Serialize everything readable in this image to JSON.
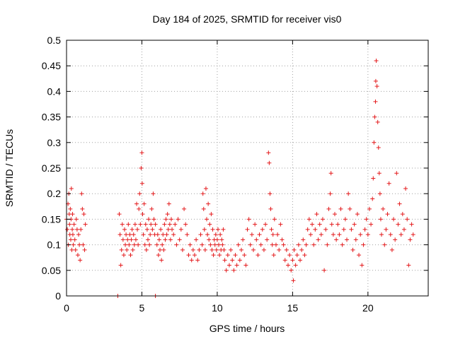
{
  "chart_data": {
    "type": "scatter",
    "title": "Day 184 of 2025, SRMTID for receiver vis0",
    "xlabel": "GPS time / hours",
    "ylabel": "SRMTID / TECUs",
    "xlim": [
      0,
      24
    ],
    "ylim": [
      0,
      0.5
    ],
    "x_ticks": [
      0,
      5,
      10,
      15,
      20
    ],
    "x_tick_labels": [
      "0",
      "5",
      "10",
      "15",
      "20"
    ],
    "y_ticks": [
      0,
      0.05,
      0.1,
      0.15,
      0.2,
      0.25,
      0.3,
      0.35,
      0.4,
      0.45,
      0.5
    ],
    "y_tick_labels": [
      "0",
      "0.05",
      "0.1",
      "0.15",
      "0.2",
      "0.25",
      "0.3",
      "0.35",
      "0.4",
      "0.45",
      "0.5"
    ],
    "grid": true,
    "marker": "+",
    "color": "#e41a1c",
    "series": [
      {
        "name": "vis0",
        "points": [
          [
            0.0,
            0.15
          ],
          [
            0.05,
            0.13
          ],
          [
            0.1,
            0.18
          ],
          [
            0.12,
            0.1
          ],
          [
            0.15,
            0.2
          ],
          [
            0.18,
            0.16
          ],
          [
            0.2,
            0.14
          ],
          [
            0.22,
            0.12
          ],
          [
            0.25,
            0.17
          ],
          [
            0.28,
            0.11
          ],
          [
            0.3,
            0.15
          ],
          [
            0.32,
            0.21
          ],
          [
            0.35,
            0.09
          ],
          [
            0.38,
            0.13
          ],
          [
            0.4,
            0.16
          ],
          [
            0.42,
            0.12
          ],
          [
            0.45,
            0.1
          ],
          [
            0.5,
            0.14
          ],
          [
            0.55,
            0.11
          ],
          [
            0.6,
            0.09
          ],
          [
            0.65,
            0.15
          ],
          [
            0.7,
            0.13
          ],
          [
            0.75,
            0.08
          ],
          [
            0.8,
            0.12
          ],
          [
            0.85,
            0.1
          ],
          [
            0.9,
            0.07
          ],
          [
            0.95,
            0.13
          ],
          [
            1.0,
            0.2
          ],
          [
            1.05,
            0.17
          ],
          [
            1.1,
            0.1
          ],
          [
            1.15,
            0.16
          ],
          [
            1.2,
            0.09
          ],
          [
            1.25,
            0.14
          ],
          [
            3.4,
            0.0
          ],
          [
            5.9,
            0.0
          ],
          [
            3.5,
            0.16
          ],
          [
            3.55,
            0.12
          ],
          [
            3.6,
            0.06
          ],
          [
            3.65,
            0.09
          ],
          [
            3.7,
            0.14
          ],
          [
            3.75,
            0.11
          ],
          [
            3.8,
            0.08
          ],
          [
            3.85,
            0.13
          ],
          [
            3.9,
            0.1
          ],
          [
            3.95,
            0.12
          ],
          [
            4.0,
            0.09
          ],
          [
            4.05,
            0.11
          ],
          [
            4.1,
            0.14
          ],
          [
            4.15,
            0.1
          ],
          [
            4.2,
            0.12
          ],
          [
            4.25,
            0.08
          ],
          [
            4.3,
            0.11
          ],
          [
            4.35,
            0.13
          ],
          [
            4.4,
            0.09
          ],
          [
            4.45,
            0.12
          ],
          [
            4.5,
            0.1
          ],
          [
            4.55,
            0.14
          ],
          [
            4.6,
            0.11
          ],
          [
            4.65,
            0.18
          ],
          [
            4.7,
            0.13
          ],
          [
            4.75,
            0.1
          ],
          [
            4.8,
            0.17
          ],
          [
            4.85,
            0.2
          ],
          [
            4.9,
            0.14
          ],
          [
            4.95,
            0.25
          ],
          [
            5.0,
            0.28
          ],
          [
            5.02,
            0.22
          ],
          [
            5.05,
            0.16
          ],
          [
            5.1,
            0.12
          ],
          [
            5.15,
            0.18
          ],
          [
            5.2,
            0.1
          ],
          [
            5.25,
            0.14
          ],
          [
            5.3,
            0.09
          ],
          [
            5.35,
            0.13
          ],
          [
            5.4,
            0.11
          ],
          [
            5.45,
            0.15
          ],
          [
            5.5,
            0.1
          ],
          [
            5.55,
            0.12
          ],
          [
            5.6,
            0.14
          ],
          [
            5.65,
            0.17
          ],
          [
            5.7,
            0.13
          ],
          [
            5.75,
            0.2
          ],
          [
            5.8,
            0.15
          ],
          [
            5.85,
            0.12
          ],
          [
            5.9,
            0.14
          ],
          [
            6.0,
            0.1
          ],
          [
            6.05,
            0.12
          ],
          [
            6.1,
            0.08
          ],
          [
            6.15,
            0.11
          ],
          [
            6.2,
            0.09
          ],
          [
            6.25,
            0.13
          ],
          [
            6.3,
            0.07
          ],
          [
            6.35,
            0.1
          ],
          [
            6.4,
            0.12
          ],
          [
            6.45,
            0.09
          ],
          [
            6.5,
            0.14
          ],
          [
            6.55,
            0.11
          ],
          [
            6.6,
            0.15
          ],
          [
            6.65,
            0.12
          ],
          [
            6.7,
            0.16
          ],
          [
            6.75,
            0.13
          ],
          [
            6.8,
            0.18
          ],
          [
            6.85,
            0.14
          ],
          [
            6.9,
            0.11
          ],
          [
            6.95,
            0.15
          ],
          [
            7.0,
            0.13
          ],
          [
            7.1,
            0.12
          ],
          [
            7.2,
            0.14
          ],
          [
            7.3,
            0.1
          ],
          [
            7.4,
            0.15
          ],
          [
            7.5,
            0.11
          ],
          [
            7.6,
            0.13
          ],
          [
            7.7,
            0.09
          ],
          [
            7.8,
            0.17
          ],
          [
            7.9,
            0.14
          ],
          [
            8.0,
            0.12
          ],
          [
            8.1,
            0.08
          ],
          [
            8.2,
            0.1
          ],
          [
            8.3,
            0.07
          ],
          [
            8.4,
            0.09
          ],
          [
            8.5,
            0.08
          ],
          [
            8.6,
            0.11
          ],
          [
            8.7,
            0.07
          ],
          [
            8.8,
            0.09
          ],
          [
            8.9,
            0.12
          ],
          [
            9.0,
            0.1
          ],
          [
            9.05,
            0.2
          ],
          [
            9.1,
            0.17
          ],
          [
            9.15,
            0.13
          ],
          [
            9.2,
            0.09
          ],
          [
            9.25,
            0.21
          ],
          [
            9.3,
            0.15
          ],
          [
            9.35,
            0.12
          ],
          [
            9.4,
            0.18
          ],
          [
            9.45,
            0.11
          ],
          [
            9.5,
            0.14
          ],
          [
            9.55,
            0.1
          ],
          [
            9.6,
            0.16
          ],
          [
            9.65,
            0.09
          ],
          [
            9.7,
            0.13
          ],
          [
            9.75,
            0.08
          ],
          [
            9.8,
            0.11
          ],
          [
            9.85,
            0.1
          ],
          [
            9.9,
            0.12
          ],
          [
            9.95,
            0.09
          ],
          [
            10.0,
            0.11
          ],
          [
            10.05,
            0.13
          ],
          [
            10.1,
            0.1
          ],
          [
            10.15,
            0.08
          ],
          [
            10.2,
            0.12
          ],
          [
            10.25,
            0.09
          ],
          [
            10.3,
            0.11
          ],
          [
            10.35,
            0.1
          ],
          [
            10.4,
            0.13
          ],
          [
            10.45,
            0.09
          ],
          [
            10.5,
            0.07
          ],
          [
            10.6,
            0.05
          ],
          [
            10.7,
            0.08
          ],
          [
            10.8,
            0.06
          ],
          [
            10.9,
            0.09
          ],
          [
            11.0,
            0.07
          ],
          [
            11.1,
            0.05
          ],
          [
            11.2,
            0.08
          ],
          [
            11.3,
            0.06
          ],
          [
            11.4,
            0.1
          ],
          [
            11.5,
            0.07
          ],
          [
            11.6,
            0.09
          ],
          [
            11.7,
            0.11
          ],
          [
            11.8,
            0.08
          ],
          [
            11.9,
            0.06
          ],
          [
            12.0,
            0.13
          ],
          [
            12.1,
            0.15
          ],
          [
            12.2,
            0.1
          ],
          [
            12.3,
            0.12
          ],
          [
            12.4,
            0.09
          ],
          [
            12.5,
            0.14
          ],
          [
            12.6,
            0.11
          ],
          [
            12.7,
            0.08
          ],
          [
            12.8,
            0.12
          ],
          [
            12.9,
            0.1
          ],
          [
            13.0,
            0.13
          ],
          [
            13.1,
            0.09
          ],
          [
            13.2,
            0.14
          ],
          [
            13.3,
            0.11
          ],
          [
            13.4,
            0.28
          ],
          [
            13.45,
            0.26
          ],
          [
            13.5,
            0.2
          ],
          [
            13.55,
            0.17
          ],
          [
            13.6,
            0.13
          ],
          [
            13.65,
            0.1
          ],
          [
            13.7,
            0.12
          ],
          [
            13.75,
            0.08
          ],
          [
            13.8,
            0.15
          ],
          [
            13.9,
            0.1
          ],
          [
            14.0,
            0.12
          ],
          [
            14.1,
            0.09
          ],
          [
            14.2,
            0.14
          ],
          [
            14.3,
            0.11
          ],
          [
            14.4,
            0.1
          ],
          [
            14.5,
            0.07
          ],
          [
            14.6,
            0.09
          ],
          [
            14.7,
            0.06
          ],
          [
            14.8,
            0.08
          ],
          [
            14.9,
            0.05
          ],
          [
            15.0,
            0.07
          ],
          [
            15.05,
            0.03
          ],
          [
            15.1,
            0.09
          ],
          [
            15.2,
            0.06
          ],
          [
            15.3,
            0.08
          ],
          [
            15.4,
            0.1
          ],
          [
            15.5,
            0.07
          ],
          [
            15.6,
            0.09
          ],
          [
            15.7,
            0.11
          ],
          [
            15.8,
            0.08
          ],
          [
            15.9,
            0.1
          ],
          [
            16.0,
            0.13
          ],
          [
            16.1,
            0.15
          ],
          [
            16.2,
            0.12
          ],
          [
            16.3,
            0.14
          ],
          [
            16.4,
            0.1
          ],
          [
            16.5,
            0.13
          ],
          [
            16.6,
            0.16
          ],
          [
            16.7,
            0.11
          ],
          [
            16.8,
            0.14
          ],
          [
            16.9,
            0.12
          ],
          [
            17.0,
            0.15
          ],
          [
            17.1,
            0.05
          ],
          [
            17.2,
            0.13
          ],
          [
            17.3,
            0.1
          ],
          [
            17.4,
            0.17
          ],
          [
            17.5,
            0.2
          ],
          [
            17.55,
            0.24
          ],
          [
            17.6,
            0.14
          ],
          [
            17.7,
            0.12
          ],
          [
            17.8,
            0.16
          ],
          [
            17.9,
            0.11
          ],
          [
            18.0,
            0.14
          ],
          [
            18.1,
            0.12
          ],
          [
            18.2,
            0.17
          ],
          [
            18.3,
            0.1
          ],
          [
            18.4,
            0.13
          ],
          [
            18.5,
            0.15
          ],
          [
            18.6,
            0.11
          ],
          [
            18.7,
            0.2
          ],
          [
            18.8,
            0.17
          ],
          [
            18.9,
            0.13
          ],
          [
            19.0,
            0.09
          ],
          [
            19.1,
            0.14
          ],
          [
            19.2,
            0.11
          ],
          [
            19.3,
            0.16
          ],
          [
            19.4,
            0.08
          ],
          [
            19.5,
            0.12
          ],
          [
            19.6,
            0.06
          ],
          [
            19.7,
            0.1
          ],
          [
            19.8,
            0.13
          ],
          [
            19.9,
            0.15
          ],
          [
            20.0,
            0.12
          ],
          [
            20.1,
            0.17
          ],
          [
            20.2,
            0.14
          ],
          [
            20.3,
            0.19
          ],
          [
            20.35,
            0.23
          ],
          [
            20.4,
            0.3
          ],
          [
            20.45,
            0.35
          ],
          [
            20.5,
            0.38
          ],
          [
            20.52,
            0.42
          ],
          [
            20.55,
            0.46
          ],
          [
            20.6,
            0.41
          ],
          [
            20.65,
            0.34
          ],
          [
            20.7,
            0.29
          ],
          [
            20.75,
            0.24
          ],
          [
            20.8,
            0.2
          ],
          [
            20.85,
            0.15
          ],
          [
            20.9,
            0.12
          ],
          [
            21.0,
            0.17
          ],
          [
            21.1,
            0.1
          ],
          [
            21.2,
            0.13
          ],
          [
            21.3,
            0.16
          ],
          [
            21.4,
            0.22
          ],
          [
            21.5,
            0.12
          ],
          [
            21.6,
            0.09
          ],
          [
            21.7,
            0.15
          ],
          [
            21.8,
            0.11
          ],
          [
            21.9,
            0.24
          ],
          [
            22.0,
            0.14
          ],
          [
            22.1,
            0.18
          ],
          [
            22.2,
            0.12
          ],
          [
            22.3,
            0.16
          ],
          [
            22.4,
            0.13
          ],
          [
            22.5,
            0.21
          ],
          [
            22.6,
            0.15
          ],
          [
            22.7,
            0.06
          ],
          [
            22.8,
            0.11
          ],
          [
            22.9,
            0.14
          ],
          [
            23.0,
            0.12
          ]
        ]
      }
    ]
  }
}
